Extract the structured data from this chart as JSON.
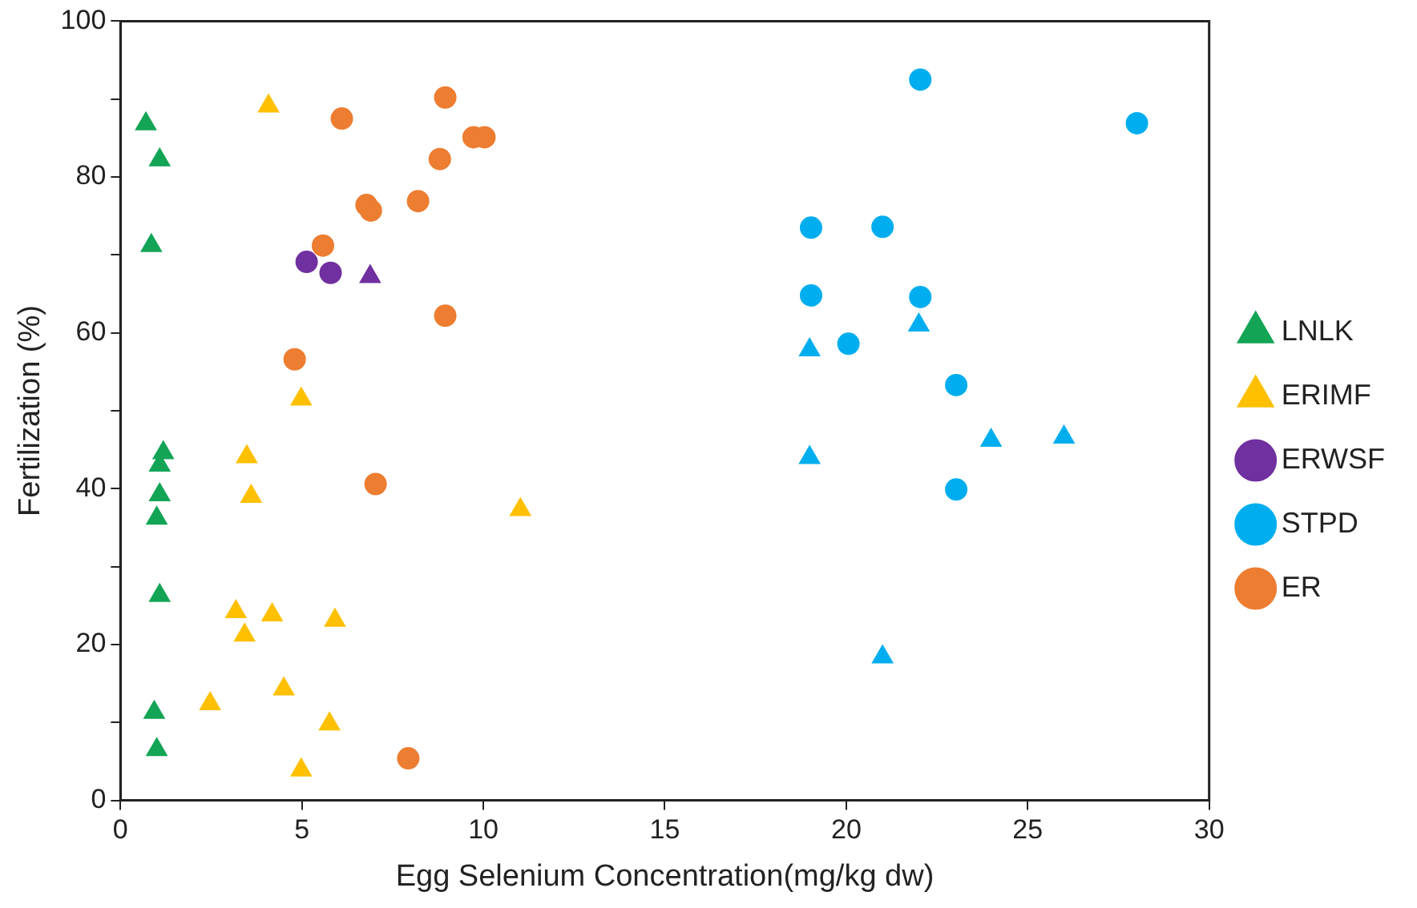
{
  "chart_data": {
    "type": "scatter",
    "xlabel": "Egg Selenium Concentration(mg/kg dw)",
    "ylabel": "Fertilization (%)",
    "xlim": [
      0,
      30
    ],
    "xticks": [
      0,
      5,
      10,
      15,
      20,
      25,
      30
    ],
    "ylim": [
      0,
      100
    ],
    "yticks": [
      0,
      {
        "value": 10,
        "label": null
      },
      20,
      {
        "value": 30,
        "label": null
      },
      40,
      {
        "value": 50,
        "label": null
      },
      60,
      {
        "value": 70,
        "label": null
      },
      80,
      {
        "value": 90,
        "label": null
      },
      100
    ],
    "grid": false,
    "legend": "right",
    "series": [
      {
        "name": "LNLK",
        "color": "#13a456",
        "marker": "triangle",
        "x": [
          0.7,
          1.08,
          0.85,
          1.18,
          1.08,
          1.08,
          1.0,
          1.08,
          0.93,
          1.0
        ],
        "values": [
          86.8,
          82.2,
          71.2,
          44.6,
          43.0,
          39.2,
          36.2,
          26.3,
          11.3,
          6.5
        ]
      },
      {
        "name": "ERIMF",
        "color": "#ffc000",
        "marker": "triangle",
        "x": [
          4.08,
          4.98,
          3.48,
          3.6,
          11.02,
          3.18,
          4.18,
          3.42,
          5.91,
          2.47,
          4.5,
          5.76,
          4.98
        ],
        "values": [
          89.1,
          51.5,
          44.1,
          39.0,
          37.3,
          24.2,
          23.8,
          21.2,
          23.1,
          12.4,
          14.3,
          9.8,
          3.9
        ]
      },
      {
        "name": "ERWSF",
        "color": "#7030a0",
        "marker": "circle",
        "x": [
          5.13,
          5.79
        ],
        "values": [
          69.1,
          67.7
        ]
      },
      {
        "name": "STPD",
        "color": "#00aeef",
        "marker": "circle",
        "x": [
          22.04,
          28.01,
          19.03,
          21.0,
          19.03,
          22.04,
          20.06,
          23.03,
          23.03
        ],
        "values": [
          92.5,
          86.9,
          73.5,
          73.6,
          64.8,
          64.6,
          58.6,
          53.3,
          39.9
        ]
      },
      {
        "name": "ER",
        "color": "#ed7d31",
        "marker": "circle",
        "x": [
          8.95,
          6.1,
          9.73,
          10.03,
          8.8,
          6.78,
          6.9,
          8.2,
          5.58,
          8.95,
          4.8,
          7.03,
          7.93
        ],
        "values": [
          90.2,
          87.5,
          85.1,
          85.1,
          82.3,
          76.4,
          75.7,
          76.9,
          71.2,
          62.2,
          56.6,
          40.6,
          5.4
        ]
      },
      {
        "color": "#7030a0",
        "marker": "triangle",
        "x": [
          6.88
        ],
        "values": [
          67.2
        ]
      },
      {
        "color": "#00aeef",
        "marker": "triangle",
        "x": [
          22.0,
          18.99,
          23.99,
          26.0,
          18.99,
          21.0
        ],
        "values": [
          61.0,
          57.8,
          46.2,
          46.6,
          44.0,
          18.4
        ]
      }
    ]
  }
}
